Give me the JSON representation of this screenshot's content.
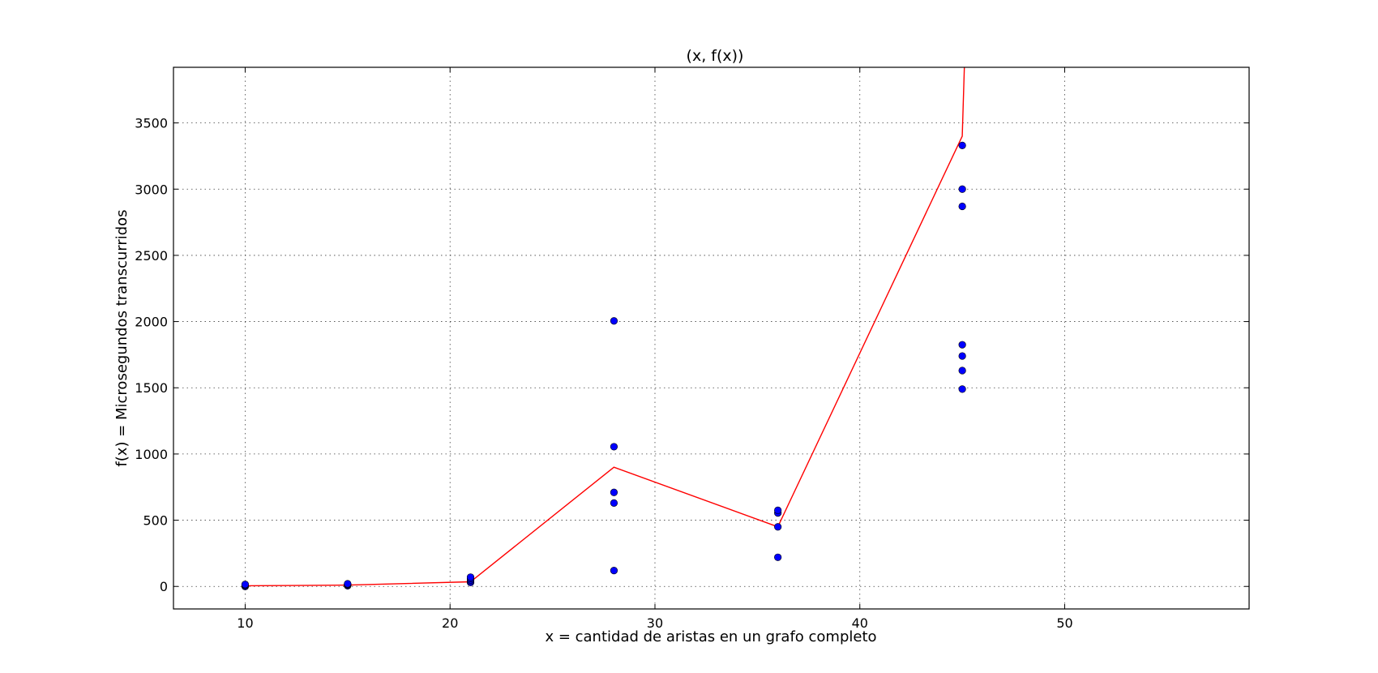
{
  "chart_data": {
    "type": "scatter",
    "title": "(x, f(x))",
    "xlabel": "x = cantidad de aristas en un grafo completo",
    "ylabel": "f(x) = Microsegundos transcurridos",
    "xlim": [
      6.5,
      59
    ],
    "ylim": [
      -170,
      3920
    ],
    "xticks": [
      10,
      20,
      30,
      40,
      50
    ],
    "yticks": [
      0,
      500,
      1000,
      1500,
      2000,
      2500,
      3000,
      3500
    ],
    "grid": true,
    "series": [
      {
        "kind": "scatter",
        "color": "#0000ff",
        "points": [
          [
            10,
            0
          ],
          [
            10,
            5
          ],
          [
            10,
            10
          ],
          [
            10,
            15
          ],
          [
            15,
            5
          ],
          [
            15,
            10
          ],
          [
            15,
            15
          ],
          [
            15,
            20
          ],
          [
            21,
            30
          ],
          [
            21,
            40
          ],
          [
            21,
            50
          ],
          [
            21,
            60
          ],
          [
            21,
            70
          ],
          [
            28,
            120
          ],
          [
            28,
            630
          ],
          [
            28,
            710
          ],
          [
            28,
            1055
          ],
          [
            28,
            2005
          ],
          [
            36,
            220
          ],
          [
            36,
            450
          ],
          [
            36,
            555
          ],
          [
            36,
            575
          ],
          [
            45,
            1490
          ],
          [
            45,
            1630
          ],
          [
            45,
            1740
          ],
          [
            45,
            1825
          ],
          [
            45,
            2870
          ],
          [
            45,
            3000
          ],
          [
            45,
            3330
          ]
        ]
      },
      {
        "kind": "line",
        "color": "#ff0000",
        "points": [
          [
            10,
            5
          ],
          [
            15,
            10
          ],
          [
            21,
            35
          ],
          [
            28,
            900
          ],
          [
            36,
            450
          ],
          [
            45,
            3400
          ],
          [
            45.1,
            3920
          ]
        ]
      }
    ]
  }
}
